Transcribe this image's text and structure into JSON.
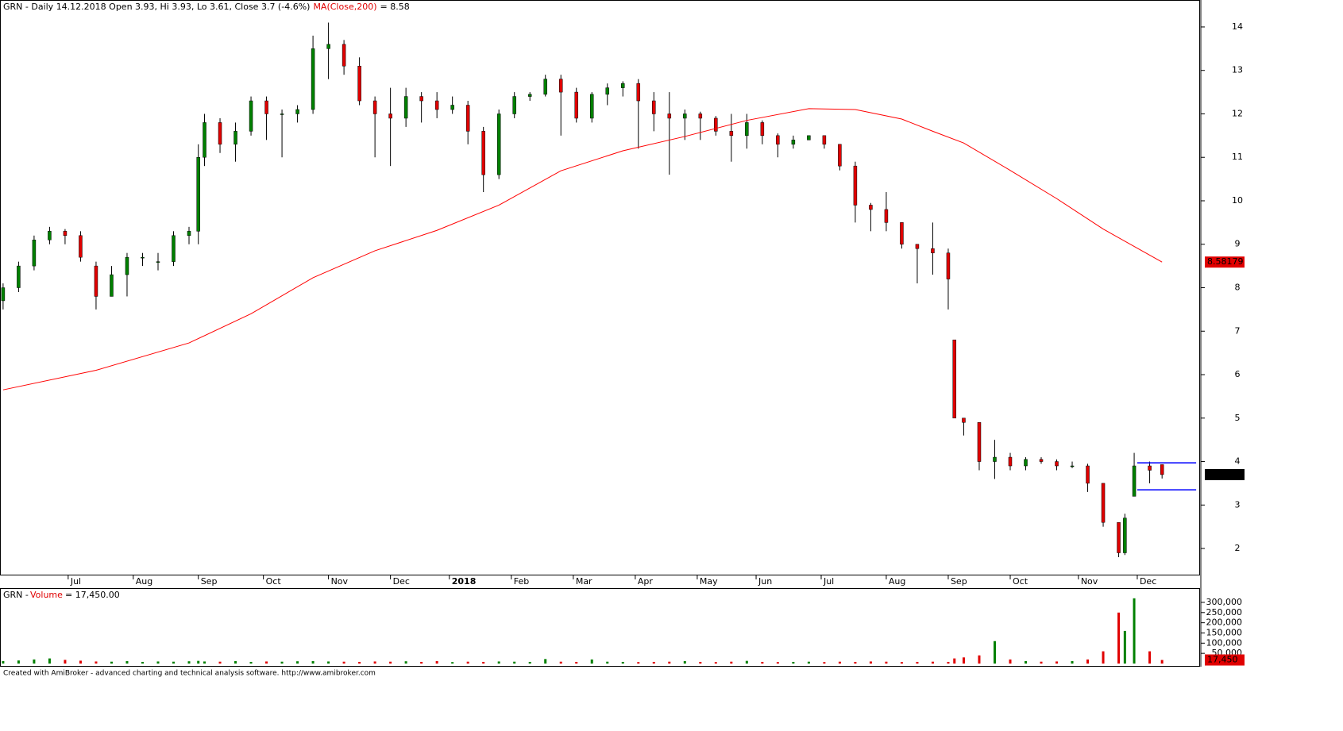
{
  "chart_data": {
    "type": "candlestick",
    "title": "GRN - Daily 14.12.2018 Open 3.93, Hi 3.93, Lo 3.61, Close 3.7 (-4.6%)",
    "ma_readout": "= 8.58",
    "up_color": "#008000",
    "down_color": "#e00000",
    "xlim": [
      -1,
      386
    ],
    "xticks": [
      {
        "value": 21,
        "label": "Jul"
      },
      {
        "value": 42,
        "label": "Aug"
      },
      {
        "value": 63,
        "label": "Sep"
      },
      {
        "value": 84,
        "label": "Oct"
      },
      {
        "value": 105,
        "label": "Nov"
      },
      {
        "value": 125,
        "label": "Dec"
      },
      {
        "value": 144,
        "label": "2018"
      },
      {
        "value": 164,
        "label": "Feb"
      },
      {
        "value": 184,
        "label": "Mar"
      },
      {
        "value": 204,
        "label": "Apr"
      },
      {
        "value": 224,
        "label": "May"
      },
      {
        "value": 243,
        "label": "Jun"
      },
      {
        "value": 264,
        "label": "Jul"
      },
      {
        "value": 285,
        "label": "Aug"
      },
      {
        "value": 305,
        "label": "Sep"
      },
      {
        "value": 325,
        "label": "Oct"
      },
      {
        "value": 347,
        "label": "Nov"
      },
      {
        "value": 366,
        "label": "Dec"
      }
    ],
    "ylim": [
      1.38,
      14.62
    ],
    "yticks": [
      2,
      3,
      4,
      5,
      6,
      7,
      8,
      9,
      10,
      11,
      12,
      13,
      14
    ],
    "x": [
      0,
      5,
      10,
      15,
      20,
      25,
      30,
      35,
      40,
      45,
      50,
      55,
      60,
      63,
      65,
      70,
      75,
      80,
      85,
      90,
      95,
      100,
      105,
      110,
      115,
      120,
      125,
      130,
      135,
      140,
      145,
      150,
      155,
      160,
      165,
      170,
      175,
      180,
      185,
      190,
      195,
      200,
      205,
      210,
      215,
      220,
      225,
      230,
      235,
      240,
      245,
      250,
      255,
      260,
      265,
      270,
      275,
      280,
      285,
      290,
      295,
      300,
      305,
      307,
      310,
      315,
      320,
      325,
      330,
      335,
      340,
      345,
      350,
      355,
      360,
      362,
      365,
      370,
      374
    ],
    "open": [
      7.7,
      8.0,
      8.5,
      9.1,
      9.3,
      9.2,
      8.5,
      7.8,
      8.3,
      8.7,
      8.6,
      8.6,
      9.2,
      9.3,
      11.0,
      11.8,
      11.3,
      11.6,
      12.3,
      12.0,
      12.0,
      12.1,
      13.5,
      13.6,
      13.1,
      12.3,
      12.0,
      11.9,
      12.4,
      12.3,
      12.1,
      12.2,
      11.6,
      10.6,
      12.0,
      12.4,
      12.45,
      12.8,
      12.5,
      11.9,
      12.45,
      12.6,
      12.7,
      12.3,
      12.0,
      11.9,
      12.0,
      11.9,
      11.6,
      11.5,
      11.8,
      11.5,
      11.3,
      11.4,
      11.5,
      11.3,
      10.8,
      9.9,
      9.8,
      9.5,
      9.0,
      8.9,
      8.8,
      6.8,
      5.0,
      4.9,
      4.0,
      4.1,
      3.9,
      4.05,
      4.0,
      3.9,
      3.9,
      3.5,
      2.6,
      1.9,
      3.2,
      3.9,
      3.93
    ],
    "high": [
      8.1,
      8.6,
      9.2,
      9.4,
      9.35,
      9.3,
      8.6,
      8.5,
      8.8,
      8.8,
      8.8,
      9.3,
      9.4,
      11.3,
      12.0,
      11.9,
      11.8,
      12.4,
      12.4,
      12.1,
      12.2,
      13.8,
      14.1,
      13.7,
      13.3,
      12.4,
      12.6,
      12.6,
      12.5,
      12.5,
      12.4,
      12.3,
      11.7,
      12.1,
      12.5,
      12.5,
      12.9,
      12.9,
      12.6,
      12.5,
      12.7,
      12.75,
      12.8,
      12.5,
      12.5,
      12.1,
      12.05,
      11.95,
      12.0,
      12.0,
      11.85,
      11.55,
      11.5,
      11.5,
      11.5,
      11.3,
      10.9,
      9.95,
      10.2,
      9.5,
      9.0,
      9.5,
      8.9,
      6.8,
      5.0,
      4.9,
      4.5,
      4.2,
      4.1,
      4.1,
      4.05,
      4.0,
      3.95,
      3.5,
      2.6,
      2.8,
      4.2,
      4.0,
      3.93
    ],
    "low": [
      7.5,
      7.9,
      8.4,
      9.0,
      9.0,
      8.6,
      7.5,
      7.8,
      7.8,
      8.5,
      8.4,
      8.5,
      9.0,
      9.0,
      10.8,
      11.1,
      10.9,
      11.5,
      11.4,
      11.0,
      11.8,
      12.0,
      12.8,
      12.9,
      12.2,
      11.0,
      10.8,
      11.7,
      11.8,
      11.9,
      12.0,
      11.3,
      10.2,
      10.5,
      11.9,
      12.3,
      12.4,
      11.5,
      11.8,
      11.8,
      12.2,
      12.4,
      11.2,
      11.6,
      10.6,
      11.4,
      11.4,
      11.5,
      10.9,
      11.2,
      11.3,
      11.0,
      11.2,
      11.4,
      11.2,
      10.7,
      9.5,
      9.3,
      9.3,
      8.9,
      8.1,
      8.3,
      7.5,
      5.0,
      4.6,
      3.8,
      3.6,
      3.8,
      3.8,
      3.95,
      3.8,
      3.85,
      3.3,
      2.5,
      1.8,
      1.85,
      3.2,
      3.5,
      3.61
    ],
    "close": [
      8.0,
      8.5,
      9.1,
      9.3,
      9.2,
      8.7,
      7.8,
      8.3,
      8.7,
      8.7,
      8.6,
      9.2,
      9.3,
      11.0,
      11.8,
      11.3,
      11.6,
      12.3,
      12.0,
      12.0,
      12.1,
      13.5,
      13.6,
      13.1,
      12.3,
      12.0,
      11.9,
      12.4,
      12.3,
      12.1,
      12.2,
      11.6,
      10.6,
      12.0,
      12.4,
      12.45,
      12.8,
      12.5,
      11.9,
      12.45,
      12.6,
      12.7,
      12.3,
      12.0,
      11.9,
      12.0,
      11.9,
      11.6,
      11.5,
      11.8,
      11.5,
      11.3,
      11.4,
      11.5,
      11.3,
      10.8,
      9.9,
      9.8,
      9.5,
      9.0,
      8.9,
      8.8,
      8.2,
      5.0,
      4.9,
      4.0,
      4.1,
      3.9,
      4.05,
      4.0,
      3.9,
      3.9,
      3.5,
      2.6,
      1.9,
      2.7,
      3.9,
      3.8,
      3.7
    ],
    "ma": {
      "name": "MA(Close,200)",
      "color": "#ff0000",
      "x": [
        0,
        30,
        60,
        80,
        100,
        120,
        140,
        160,
        180,
        200,
        220,
        240,
        260,
        275,
        290,
        300,
        310,
        325,
        340,
        355,
        374
      ],
      "values": [
        5.65,
        6.1,
        6.73,
        7.4,
        8.23,
        8.85,
        9.32,
        9.9,
        10.69,
        11.15,
        11.48,
        11.85,
        12.12,
        12.1,
        11.88,
        11.6,
        11.33,
        10.7,
        10.05,
        9.35,
        8.59
      ]
    },
    "last_value_label": "8.58179",
    "last_close_label": "3.7",
    "levels": {
      "color": "#0000ff",
      "x": [
        366,
        385
      ],
      "values": [
        3.97,
        3.35
      ]
    },
    "volume": {
      "title": "GRN -",
      "name": "Volume",
      "readout": "= 17,450.00",
      "ylim": [
        0,
        366000
      ],
      "yticks": [
        {
          "value": 50000,
          "label": "50,000"
        },
        {
          "value": 100000,
          "label": "100,000"
        },
        {
          "value": 150000,
          "label": "150,000"
        },
        {
          "value": 200000,
          "label": "200,000"
        },
        {
          "value": 250000,
          "label": "250,000"
        },
        {
          "value": 300000,
          "label": "300,000"
        }
      ],
      "values": [
        12000,
        15000,
        20000,
        25000,
        18000,
        14000,
        10000,
        9000,
        12000,
        8000,
        10000,
        9000,
        11000,
        13000,
        10000,
        9000,
        12000,
        8000,
        10000,
        9000,
        11000,
        12000,
        10000,
        9000,
        8000,
        10000,
        9000,
        11000,
        8000,
        12000,
        7000,
        9000,
        8000,
        10000,
        9000,
        8000,
        22000,
        9000,
        8000,
        20000,
        9000,
        8000,
        7000,
        8000,
        9000,
        12000,
        8000,
        7000,
        9000,
        13000,
        8000,
        7000,
        8000,
        9000,
        7000,
        9000,
        8000,
        10000,
        9000,
        7000,
        8000,
        9000,
        8000,
        25000,
        30000,
        40000,
        110000,
        20000,
        12000,
        9000,
        10000,
        12000,
        20000,
        60000,
        250000,
        160000,
        320000,
        60000,
        17450
      ],
      "last_label": "17,450"
    },
    "footer": "Created with AmiBroker - advanced charting and technical analysis software. http://www.amibroker.com"
  }
}
